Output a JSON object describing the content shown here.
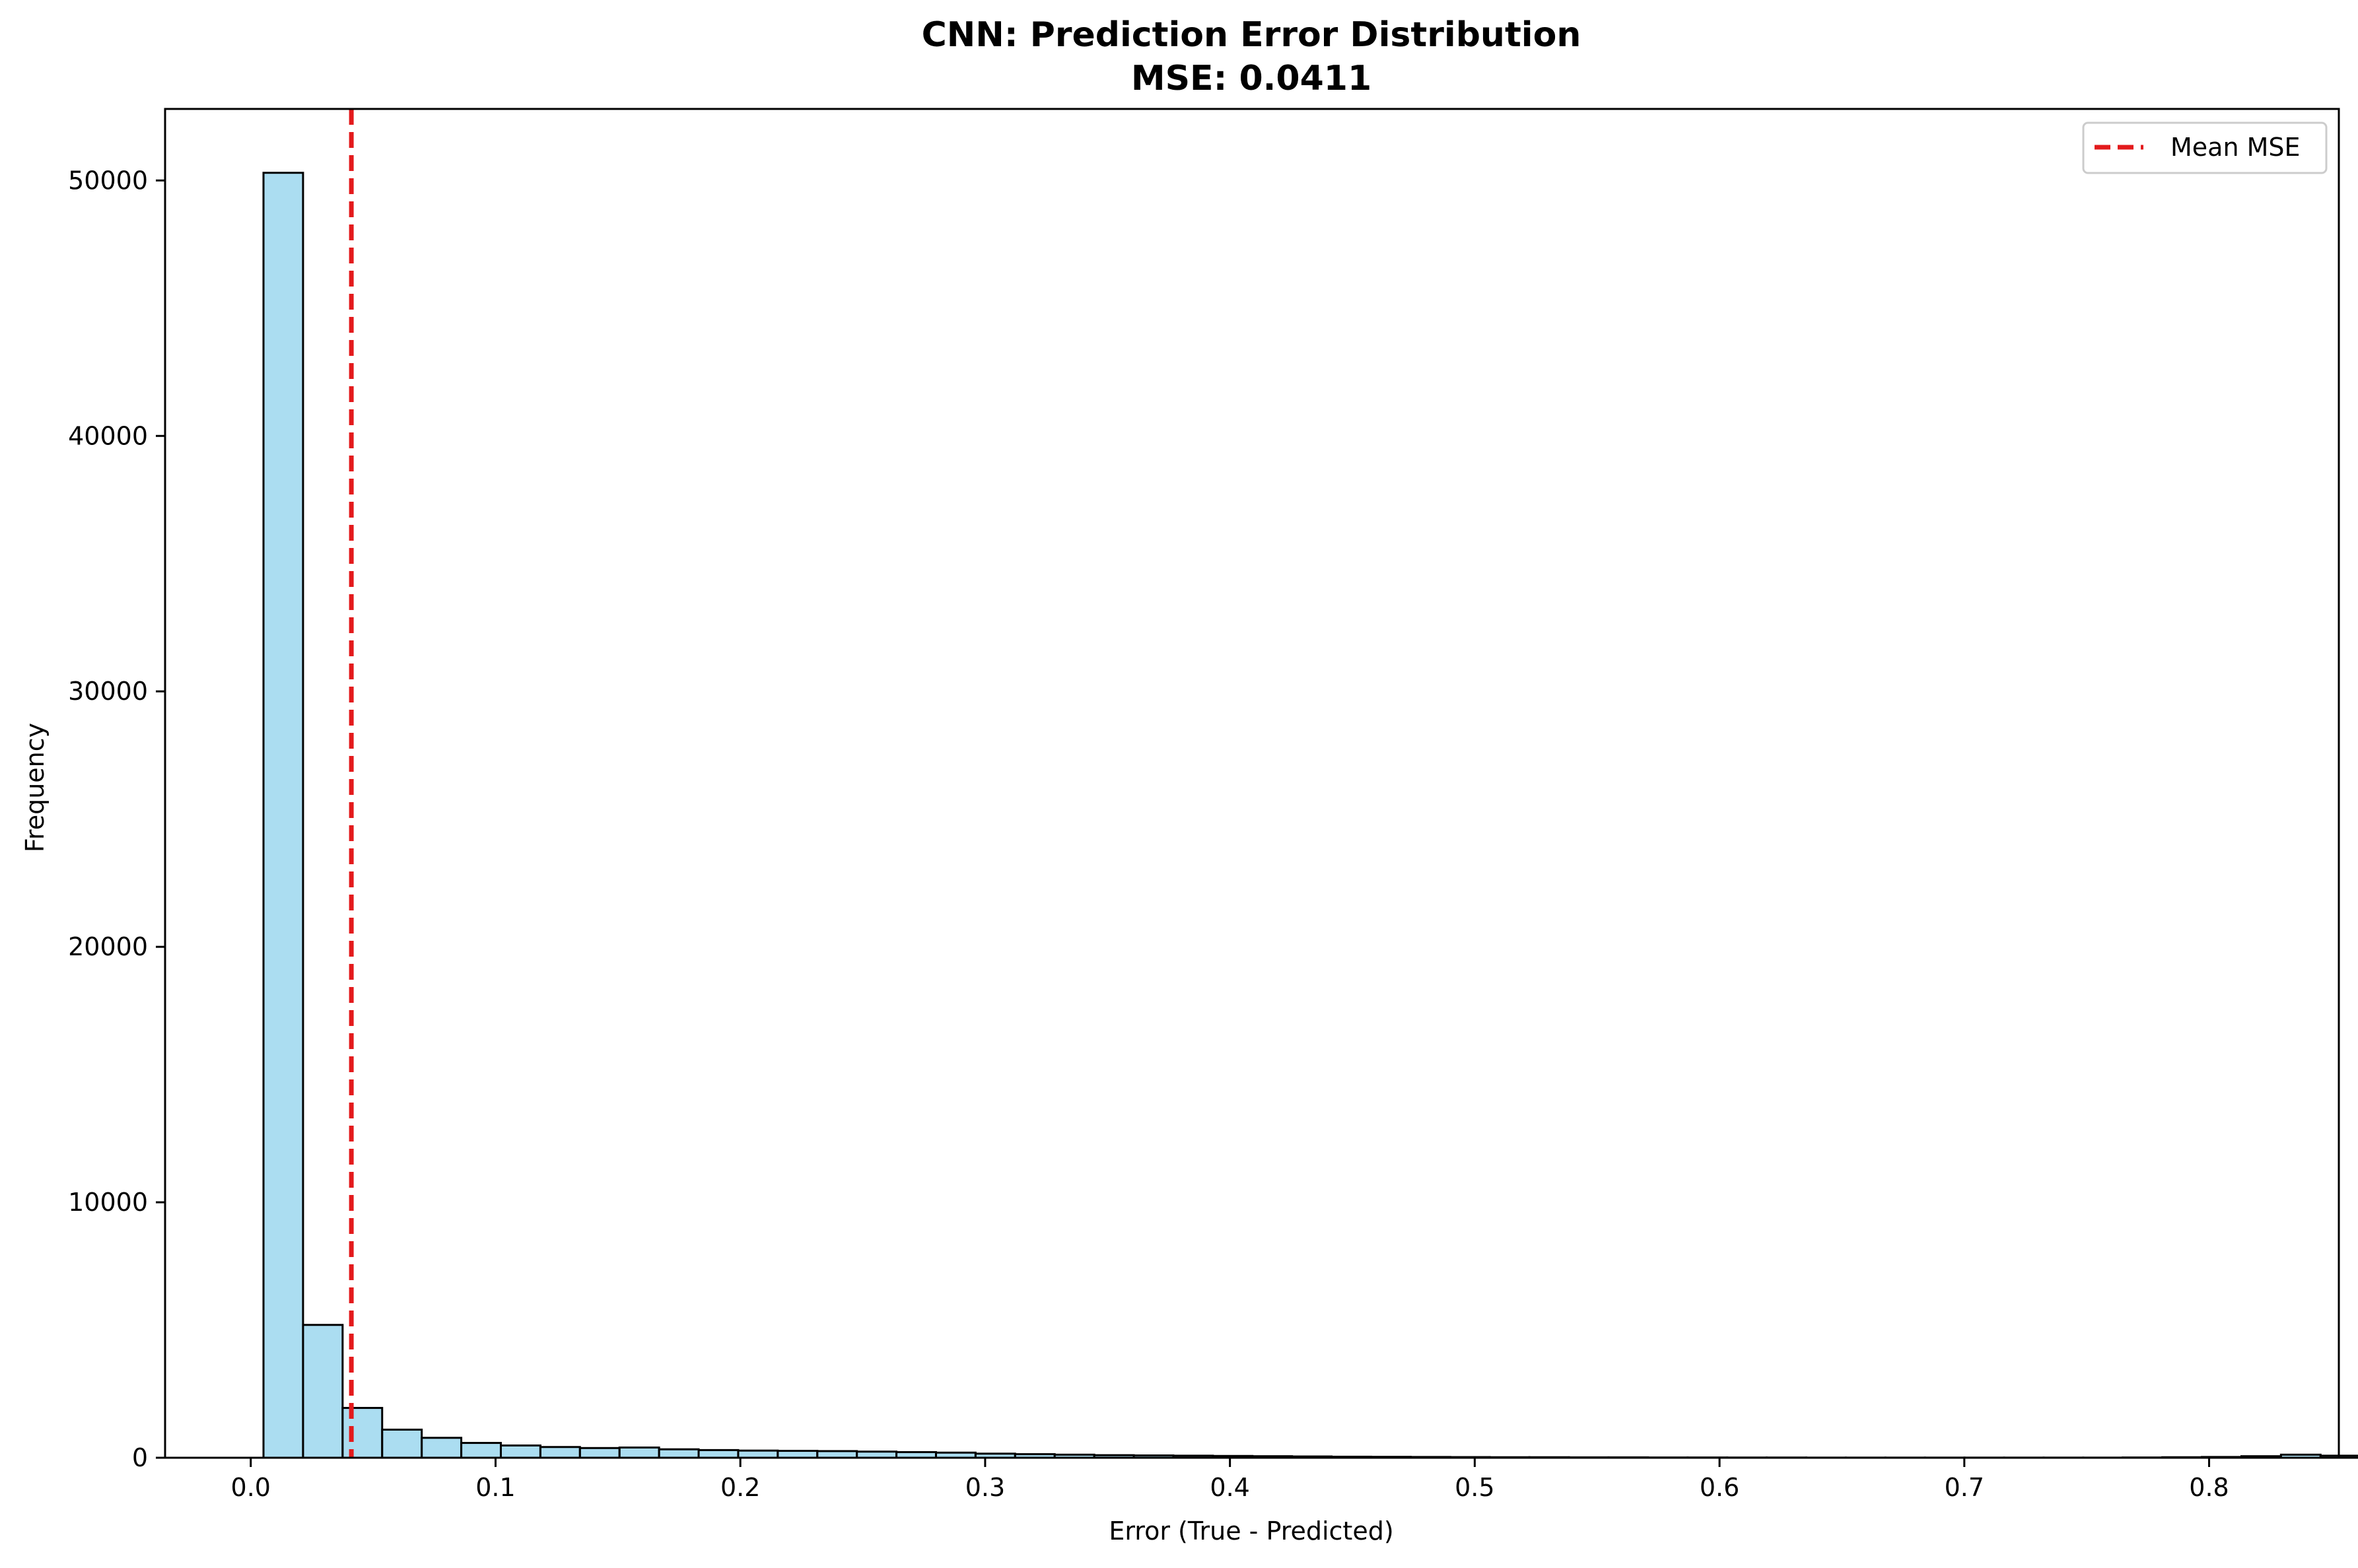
{
  "chart_data": {
    "type": "bar",
    "title": "CNN: Prediction Error Distribution",
    "subtitle": "MSE: 0.0411",
    "xlabel": "Error (True - Predicted)",
    "ylabel": "Frequency",
    "xlim": [
      -0.035,
      0.853
    ],
    "ylim": [
      0,
      52800
    ],
    "xticks": [
      0.0,
      0.1,
      0.2,
      0.3,
      0.4,
      0.5,
      0.6,
      0.7,
      0.8
    ],
    "xtick_labels": [
      "0.0",
      "0.1",
      "0.2",
      "0.3",
      "0.4",
      "0.5",
      "0.6",
      "0.7",
      "0.8"
    ],
    "yticks": [
      0,
      10000,
      20000,
      30000,
      40000,
      50000
    ],
    "ytick_labels": [
      "0",
      "10000",
      "20000",
      "30000",
      "40000",
      "50000"
    ],
    "bin_start": 0.0052,
    "bin_width": 0.01616,
    "bin_counts": [
      50300,
      5200,
      1950,
      1100,
      780,
      580,
      480,
      420,
      380,
      400,
      330,
      300,
      280,
      270,
      260,
      240,
      220,
      200,
      160,
      140,
      120,
      100,
      90,
      80,
      70,
      60,
      50,
      40,
      35,
      30,
      25,
      20,
      20,
      15,
      15,
      10,
      10,
      8,
      8,
      5,
      5,
      5,
      5,
      5,
      5,
      5,
      5,
      10,
      20,
      30,
      60,
      120,
      80,
      30,
      220
    ],
    "grid": false,
    "bar_color": "#87ceeb",
    "bar_opacity": 0.7,
    "bar_edge_color": "#000000",
    "mean_line": {
      "x": 0.0411,
      "label": "Mean MSE",
      "color": "#e31a1c",
      "style": "dashed"
    },
    "legend_position": "top-right"
  }
}
